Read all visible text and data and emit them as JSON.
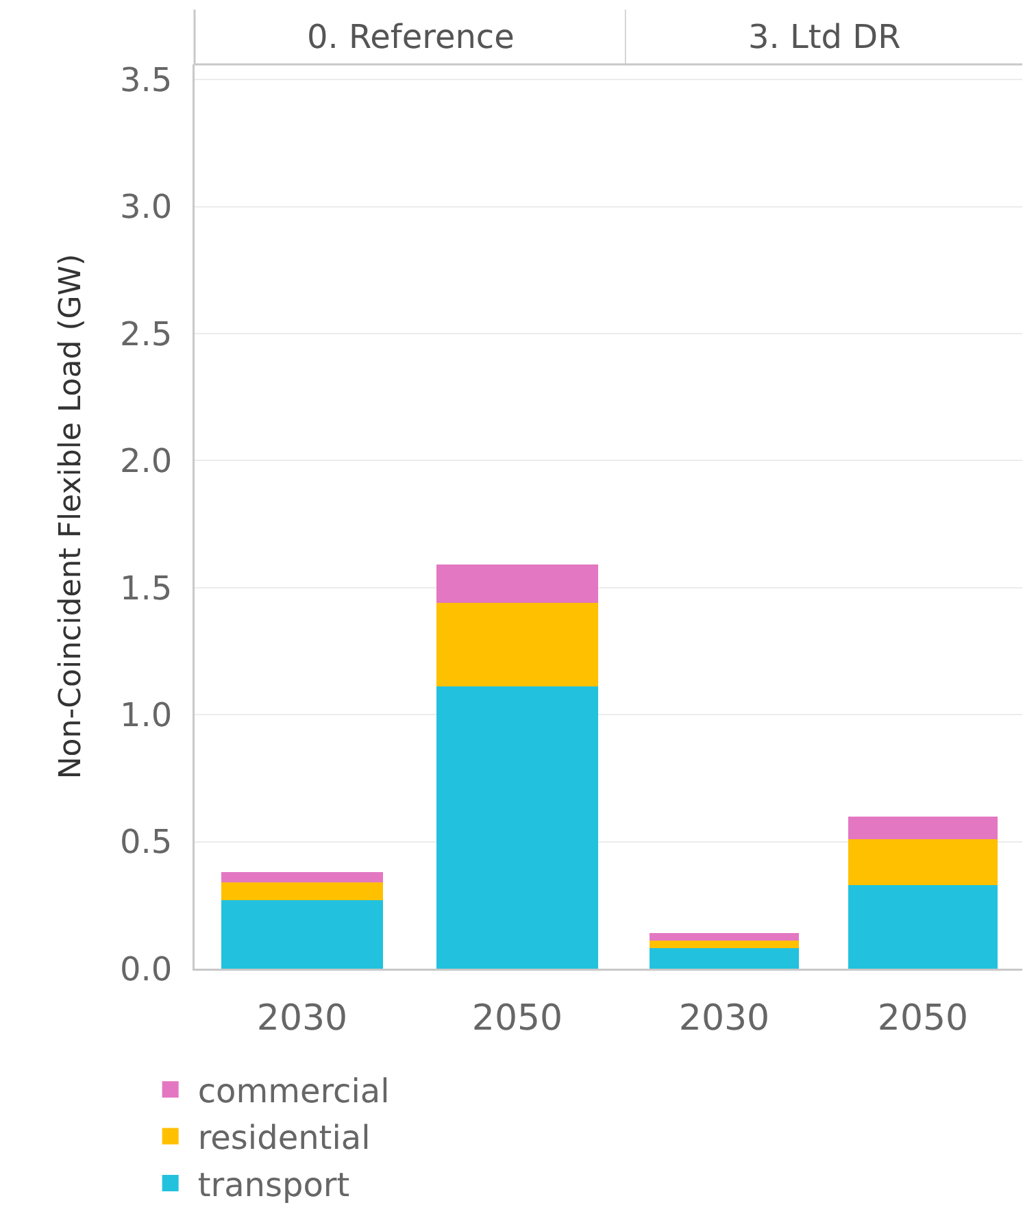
{
  "chart_data": [
    {
      "type": "bar",
      "title": "0. Reference",
      "ylabel": "Non-Coincident Flexible Load (GW)",
      "categories": [
        "2030",
        "2050"
      ],
      "stacked": true,
      "series": [
        {
          "name": "transport",
          "color": "#22c2de",
          "values": [
            0.27,
            1.11
          ]
        },
        {
          "name": "residential",
          "color": "#ffc000",
          "values": [
            0.07,
            0.33
          ]
        },
        {
          "name": "commercial",
          "color": "#e377c2",
          "values": [
            0.04,
            0.15
          ]
        }
      ],
      "ylim": [
        0,
        3.56
      ],
      "yticks": [
        {
          "value": 0,
          "label": "0.0"
        },
        0.5,
        {
          "value": 1,
          "label": "1.0"
        },
        1.5,
        {
          "value": 2,
          "label": "2.0"
        },
        2.5,
        {
          "value": 3,
          "label": "3.0"
        },
        3.5
      ],
      "grid": "y",
      "legend": "bottom"
    },
    {
      "type": "bar",
      "title": "3. Ltd DR",
      "categories": [
        "2030",
        "2050"
      ],
      "stacked": true,
      "series": [
        {
          "color": "#22c2de",
          "values": [
            0.08,
            0.33
          ]
        },
        {
          "color": "#ffc000",
          "values": [
            0.03,
            0.18
          ]
        },
        {
          "color": "#e377c2",
          "values": [
            0.03,
            0.09
          ]
        }
      ],
      "ylim": [
        0,
        3.56
      ],
      "yticks": [
        0,
        0.5,
        1,
        1.5,
        2,
        2.5,
        3,
        3.5
      ],
      "grid": "y",
      "tick_labels": "x"
    }
  ]
}
